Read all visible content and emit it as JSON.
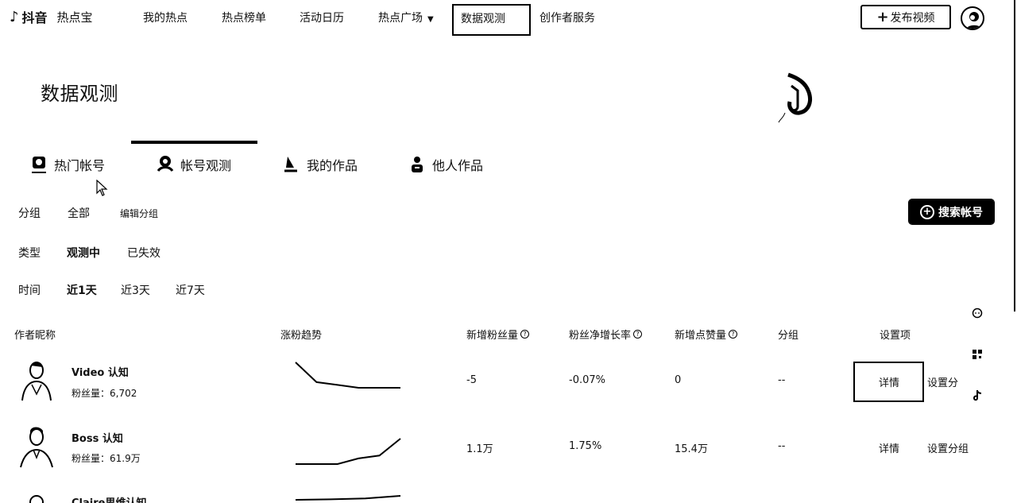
{
  "nav": {
    "logo_brand": "抖音",
    "logo_sub": "热点宝",
    "items": [
      "我的热点",
      "热点榜单",
      "活动日历",
      "热点广场"
    ],
    "active": "数据观测",
    "creator": "创作者服务",
    "publish": "发布视频"
  },
  "page": {
    "title": "数据观测"
  },
  "tabs": [
    {
      "label": "热门帐号",
      "icon": "hot-account-icon"
    },
    {
      "label": "帐号观测",
      "icon": "account-observe-icon",
      "active": true
    },
    {
      "label": "我的作品",
      "icon": "my-works-icon"
    },
    {
      "label": "他人作品",
      "icon": "others-works-icon"
    }
  ],
  "filters": {
    "group": {
      "label": "分组",
      "options": [
        "全部",
        "编辑分组"
      ]
    },
    "type": {
      "label": "类型",
      "options": [
        "观测中",
        "已失效"
      ],
      "selected": "观测中"
    },
    "time": {
      "label": "时间",
      "options": [
        "近1天",
        "近3天",
        "近7天"
      ],
      "selected": "近1天"
    },
    "search_button": "搜索帐号"
  },
  "table": {
    "headers": {
      "author": "作者昵称",
      "trend": "涨粉趋势",
      "new_fans": "新增粉丝量",
      "growth": "粉丝净增长率",
      "new_likes": "新增点赞量",
      "group": "分组",
      "settings": "设置项"
    },
    "rows": [
      {
        "name": "Video 认知",
        "fans": "粉丝量：6,702",
        "new_fans": "-5",
        "growth": "-0.07%",
        "new_likes": "0",
        "group": "--",
        "detail": "详情",
        "setting": "设置分",
        "trend": [
          10,
          3,
          2,
          1,
          1,
          1
        ]
      },
      {
        "name": "Boss 认知",
        "fans": "粉丝量：61.9万",
        "new_fans": "1.1万",
        "growth": "1.75%",
        "new_likes": "15.4万",
        "group": "--",
        "detail": "详情",
        "setting": "设置分组",
        "trend": [
          1,
          1,
          1,
          3,
          4,
          10
        ]
      },
      {
        "name": "Claire思维认知",
        "fans": "",
        "new_fans": "",
        "growth": "",
        "new_likes": "",
        "group": "",
        "detail": "",
        "setting": "",
        "trend": [
          1,
          2,
          4,
          10
        ]
      }
    ]
  },
  "side_icons": [
    "chat-icon",
    "qrcode-icon",
    "tiktok-icon"
  ]
}
